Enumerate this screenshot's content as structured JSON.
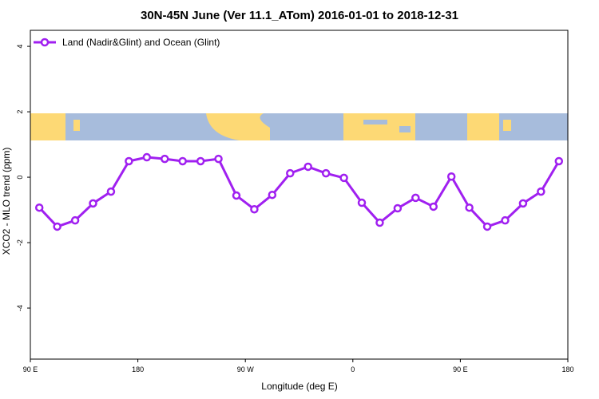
{
  "chart_data": {
    "type": "line",
    "title": "30N-45N June (Ver 11.1_ATom)   2016-01-01 to 2018-12-31",
    "x_label": "Longitude (deg E)",
    "y_label": "XCO2 - MLO trend (ppm)",
    "x": [
      97.5,
      112.5,
      127.5,
      142.5,
      157.5,
      172.5,
      187.5,
      202.5,
      217.5,
      232.5,
      247.5,
      262.5,
      277.5,
      292.5,
      307.5,
      322.5,
      337.5,
      352.5,
      367.5,
      382.5,
      397.5,
      412.5,
      427.5,
      442.5,
      457.5,
      472.5,
      487.5,
      502.5,
      517.5,
      532.5
    ],
    "series": [
      {
        "name": "Land (Nadir&Glint) and Ocean (Glint)",
        "color": "#a020f0",
        "values": [
          -0.93,
          -1.51,
          -1.32,
          -0.8,
          -0.44,
          0.49,
          0.61,
          0.56,
          0.49,
          0.49,
          0.56,
          -0.56,
          -0.98,
          -0.54,
          0.12,
          0.32,
          0.12,
          -0.02,
          -0.78,
          -1.39,
          -0.95,
          -0.63,
          -0.9,
          0.02,
          -0.93,
          -1.51,
          -1.32,
          -0.8,
          -0.44,
          0.49
        ]
      }
    ],
    "xlim": [
      90,
      540
    ],
    "xticks": [
      {
        "value": 90,
        "label": "90 E"
      },
      {
        "value": 180,
        "label": "180"
      },
      {
        "value": 270,
        "label": "90 W"
      },
      {
        "value": 360,
        "label": "0"
      },
      {
        "value": 450,
        "label": "90 E"
      },
      {
        "value": 540,
        "label": "180"
      }
    ],
    "ylim": [
      -5.56,
      4.49
    ],
    "yticks": [
      -4,
      -2,
      0,
      2,
      4
    ],
    "legend": "top-left"
  }
}
